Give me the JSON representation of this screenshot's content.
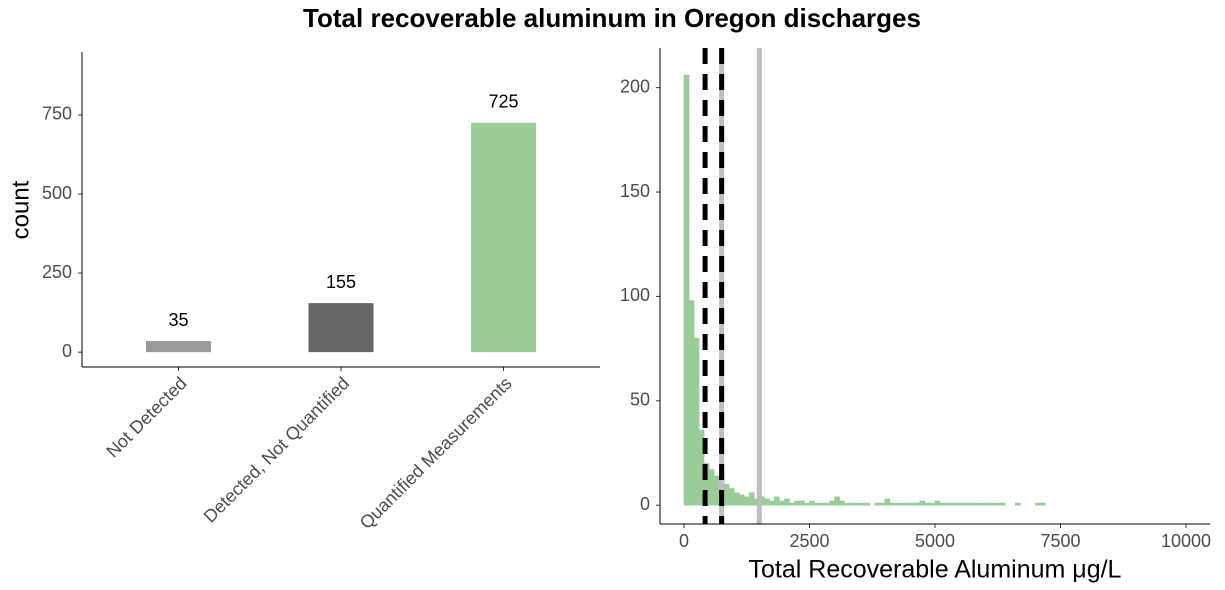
{
  "title": "Total recoverable aluminum in Oregon discharges",
  "chart_data": [
    {
      "type": "bar",
      "ylabel": "count",
      "categories": [
        "Not Detected",
        "Detected, Not Quantified",
        "Quantified Measurements"
      ],
      "values": [
        35,
        155,
        725
      ],
      "colors": [
        "#999999",
        "#666666",
        "#99cc99"
      ],
      "ylim": [
        -47,
        949
      ],
      "yticks": [
        0,
        250,
        500,
        750
      ]
    },
    {
      "type": "histogram",
      "xlabel": "Total Recoverable Aluminum μg/L",
      "color": "#99cc99",
      "bins": [
        0,
        100,
        200,
        300,
        400,
        500,
        600,
        700,
        800,
        900,
        1000,
        1100,
        1200,
        1300,
        1400,
        1500,
        1600,
        1700,
        1800,
        1900,
        2000,
        2100,
        2200,
        2300,
        2400,
        2500,
        2600,
        2700,
        2800,
        2900,
        3000,
        3100,
        3200,
        3300,
        3400,
        3500,
        3600,
        3700,
        3800,
        3900,
        4000,
        4100,
        4200,
        4300,
        4400,
        4500,
        4600,
        4700,
        4800,
        4900,
        5000,
        5100,
        5200,
        5300,
        5400,
        5500,
        5600,
        5700,
        5800,
        5900,
        6000,
        6100,
        6200,
        6300,
        6400,
        6500,
        6600,
        6700,
        6800,
        6900,
        7000,
        7100,
        7200,
        7300,
        7400,
        7500,
        7600,
        7700,
        7800,
        7900,
        8000,
        8100,
        8200,
        8300,
        8400,
        8500,
        8600,
        8700,
        8800,
        8900,
        9000,
        9100,
        9200,
        9300,
        9400,
        9500,
        9600,
        9700,
        9800,
        9900,
        10000
      ],
      "values": [
        206,
        98,
        80,
        36,
        20,
        17,
        14,
        16,
        10,
        8,
        6,
        5,
        4,
        6,
        3,
        4,
        3,
        2,
        4,
        2,
        3,
        1,
        2,
        2,
        1,
        2,
        1,
        1,
        1,
        2,
        4,
        2,
        1,
        1,
        1,
        1,
        1,
        0,
        1,
        1,
        3,
        1,
        1,
        1,
        1,
        1,
        1,
        2,
        1,
        1,
        2,
        1,
        1,
        1,
        1,
        1,
        1,
        1,
        1,
        1,
        1,
        1,
        1,
        1,
        0,
        0,
        1,
        0,
        0,
        0,
        1,
        1,
        0,
        0,
        0,
        0,
        0,
        0,
        0,
        0,
        0,
        0,
        0,
        0,
        0,
        0,
        0,
        0,
        0,
        0,
        0,
        0,
        0,
        0,
        0,
        0,
        0,
        0,
        0,
        0
      ],
      "vlines": [
        {
          "value": 750,
          "color": "#bebebe",
          "dash": false
        },
        {
          "value": 1500,
          "color": "#bebebe",
          "dash": false
        },
        {
          "value": 420,
          "color": "#000000",
          "dash": true
        },
        {
          "value": 750,
          "color": "#000000",
          "dash": true
        }
      ],
      "xlim": [
        -478,
        10478
      ],
      "xticks": [
        0,
        2500,
        5000,
        7500,
        10000
      ],
      "ylim": [
        -9,
        219
      ],
      "yticks": [
        0,
        50,
        100,
        150,
        200
      ]
    }
  ]
}
